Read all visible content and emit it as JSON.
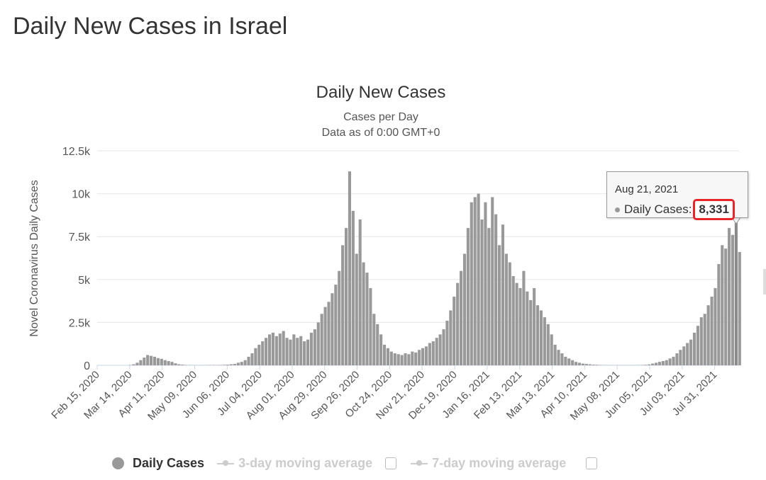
{
  "page_title": "Daily New Cases in Israel",
  "tooltip": {
    "date": "Aug 21, 2021",
    "label": "Daily Cases:",
    "value": "8,331"
  },
  "legend": {
    "items": [
      {
        "label": "Daily Cases",
        "active": true
      },
      {
        "label": "3-day moving average",
        "active": false
      },
      {
        "label": "7-day moving average",
        "active": false
      }
    ]
  },
  "colors": {
    "bar": "#999999",
    "highlight": "#e8262a",
    "grid": "#e6e6e6"
  },
  "chart_data": {
    "type": "bar",
    "title": "Daily New Cases",
    "subtitle": "Cases per Day",
    "subtitle2": "Data as of 0:00 GMT+0",
    "xlabel": "",
    "ylabel": "Novel Coronavirus Daily Cases",
    "ylim": [
      0,
      12500
    ],
    "yticks": [
      0,
      2500,
      5000,
      7500,
      10000,
      12500
    ],
    "ytick_labels": [
      "0",
      "2.5k",
      "5k",
      "7.5k",
      "10k",
      "12.5k"
    ],
    "x_start": "Feb 15, 2020",
    "x_days_total": 553,
    "bin_days": 3,
    "xtick_labels": [
      "Feb 15, 2020",
      "Mar 14, 2020",
      "Apr 11, 2020",
      "May 09, 2020",
      "Jun 06, 2020",
      "Jul 04, 2020",
      "Aug 01, 2020",
      "Aug 29, 2020",
      "Sep 26, 2020",
      "Oct 24, 2020",
      "Nov 21, 2020",
      "Dec 19, 2020",
      "Jan 16, 2021",
      "Feb 13, 2021",
      "Mar 13, 2021",
      "Apr 10, 2021",
      "May 08, 2021",
      "Jun 05, 2021",
      "Jul 03, 2021",
      "Jul 31, 2021"
    ],
    "xtick_interval_days": 28,
    "values": [
      0,
      0,
      0,
      0,
      0,
      0,
      0,
      0,
      0,
      20,
      60,
      150,
      300,
      450,
      600,
      550,
      500,
      420,
      380,
      300,
      250,
      200,
      120,
      60,
      40,
      20,
      15,
      10,
      10,
      8,
      10,
      15,
      20,
      20,
      15,
      20,
      30,
      40,
      60,
      80,
      150,
      200,
      300,
      500,
      700,
      1000,
      1200,
      1400,
      1600,
      1800,
      1900,
      1700,
      1850,
      2000,
      1600,
      1500,
      1800,
      1600,
      1700,
      1400,
      1500,
      1900,
      2100,
      2500,
      3000,
      3400,
      3700,
      4200,
      4700,
      5500,
      7000,
      8000,
      11300,
      9000,
      6500,
      8500,
      6000,
      5400,
      4500,
      3000,
      2400,
      1800,
      1200,
      1000,
      800,
      700,
      650,
      600,
      700,
      650,
      800,
      750,
      900,
      1000,
      1100,
      1300,
      1400,
      1600,
      1800,
      2100,
      2600,
      3200,
      4000,
      4800,
      5500,
      6500,
      8000,
      9500,
      9800,
      10000,
      8500,
      9500,
      8000,
      9800,
      8800,
      7000,
      8200,
      6500,
      6000,
      5200,
      4800,
      4500,
      5500,
      4300,
      3800,
      4500,
      3500,
      3200,
      2800,
      2400,
      1800,
      1200,
      900,
      700,
      500,
      400,
      300,
      200,
      150,
      100,
      80,
      60,
      40,
      30,
      20,
      15,
      10,
      10,
      8,
      10,
      10,
      8,
      8,
      10,
      10,
      15,
      20,
      30,
      50,
      100,
      150,
      200,
      250,
      300,
      400,
      500,
      700,
      900,
      1100,
      1300,
      1500,
      1900,
      2300,
      2800,
      3000,
      3500,
      4000,
      4500,
      5900,
      7000,
      6800,
      8000,
      7600,
      8331,
      6600
    ],
    "highlight_index": 183,
    "legend_position": "bottom"
  }
}
